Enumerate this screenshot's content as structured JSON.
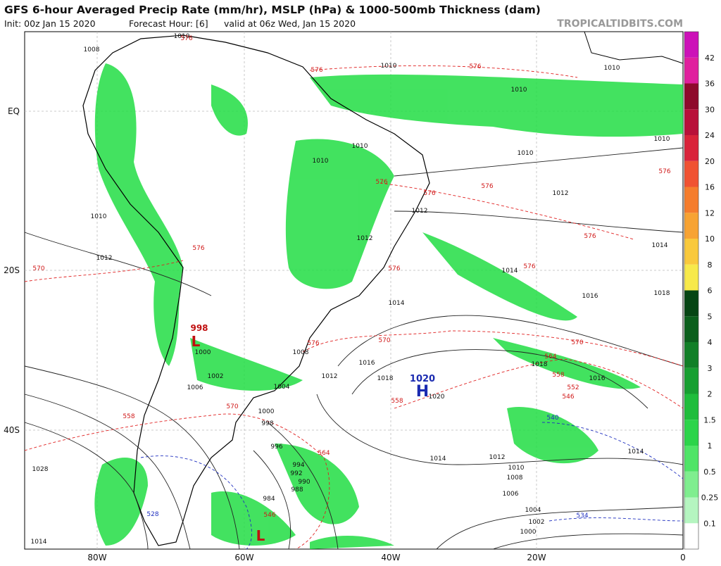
{
  "header": {
    "title": "GFS 6-hour Averaged Precip Rate (mm/hr), MSLP (hPa) & 1000-500mb Thickness (dam)",
    "init": "Init: 00z Jan 15 2020",
    "forecast_hour": "Forecast Hour: [6]",
    "valid": "valid at 06z Wed, Jan 15 2020",
    "site": "TROPICALTIDBITS.COM"
  },
  "map": {
    "lat_labels": [
      "EQ",
      "20S",
      "40S"
    ],
    "lon_labels": [
      "80W",
      "60W",
      "40W",
      "20W",
      "0"
    ],
    "high": {
      "symbol": "H",
      "label": "1020"
    },
    "lows": [
      {
        "symbol": "L",
        "label": "998"
      },
      {
        "symbol": "L"
      }
    ],
    "isobar_labels": [
      "1008",
      "1010",
      "1010",
      "1010",
      "1010",
      "1010",
      "1010",
      "1010",
      "1010",
      "1010",
      "1012",
      "1012",
      "1012",
      "1012",
      "1014",
      "1014",
      "1014",
      "1016",
      "1018",
      "1016",
      "1018",
      "1018",
      "1016",
      "1020",
      "1014",
      "1014",
      "1012",
      "1010",
      "1008",
      "1006",
      "1004",
      "1002",
      "1000",
      "1028",
      "1014",
      "1000",
      "998",
      "996",
      "994",
      "992",
      "990",
      "988",
      "984",
      "1002",
      "1004",
      "1006",
      "1008",
      "1012",
      "1000"
    ],
    "thickness_labels": [
      "576",
      "576",
      "576",
      "576",
      "576",
      "576",
      "576",
      "576",
      "576",
      "576",
      "576",
      "576",
      "570",
      "570",
      "570",
      "570",
      "564",
      "564",
      "558",
      "558",
      "558",
      "552",
      "546",
      "546"
    ],
    "cold_thickness_labels": [
      "540",
      "534",
      "528"
    ]
  },
  "colorbar": {
    "labels": [
      "0.1",
      "0.25",
      "0.5",
      "1",
      "1.5",
      "2",
      "3",
      "4",
      "5",
      "6",
      "8",
      "10",
      "12",
      "16",
      "20",
      "24",
      "30",
      "36",
      "42"
    ],
    "colors": [
      "#ffffff",
      "#b5f5c0",
      "#7fee8f",
      "#4fe467",
      "#2cd44a",
      "#1fbd3c",
      "#179f31",
      "#117f27",
      "#0b5f1c",
      "#064514",
      "#f7e94a",
      "#f9c93c",
      "#f7a333",
      "#f57d2d",
      "#f05232",
      "#d9233a",
      "#b8103a",
      "#8e0a2c",
      "#e0209e",
      "#cc11b8"
    ]
  }
}
